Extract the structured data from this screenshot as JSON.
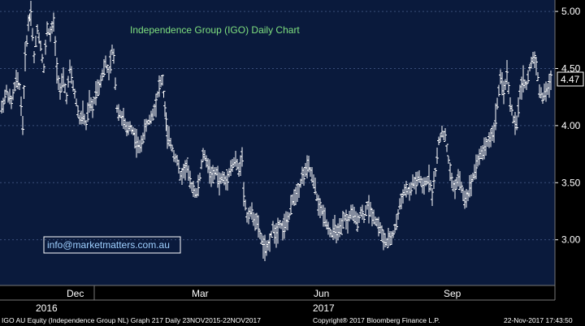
{
  "chart_data": {
    "type": "ohlc",
    "title": "Independence Group (IGO) Daily Chart",
    "email": "info@marketmatters.com.au",
    "last_price": "4.47",
    "y_ticks": [
      "5.00",
      "4.50",
      "4.00",
      "3.50",
      "3.00"
    ],
    "y_tick_values": [
      5.0,
      4.5,
      4.0,
      3.5,
      3.0
    ],
    "ylim": [
      2.6,
      5.1
    ],
    "month_labels": [
      "Dec",
      "Mar",
      "Jun",
      "Sep"
    ],
    "year_labels": [
      "2016",
      "2017"
    ],
    "grid": true,
    "footer_left": "IGO AU Equity (Independence Group NL) Graph 217  Daily 23NOV2015-22NOV2017",
    "footer_center": "Copyright® 2017 Bloomberg Finance L.P.",
    "footer_right": "22-Nov-2017 17:43:50",
    "path_points": [
      [
        0,
        4.15
      ],
      [
        6,
        4.3
      ],
      [
        12,
        4.2
      ],
      [
        18,
        4.4
      ],
      [
        22,
        4.35
      ],
      [
        26,
        4.0
      ],
      [
        29,
        4.6
      ],
      [
        33,
        4.9
      ],
      [
        36,
        5.0
      ],
      [
        40,
        4.6
      ],
      [
        44,
        4.85
      ],
      [
        48,
        4.7
      ],
      [
        52,
        4.5
      ],
      [
        56,
        4.85
      ],
      [
        60,
        4.8
      ],
      [
        64,
        4.9
      ],
      [
        68,
        4.5
      ],
      [
        72,
        4.3
      ],
      [
        76,
        4.4
      ],
      [
        80,
        4.25
      ],
      [
        84,
        4.5
      ],
      [
        88,
        4.35
      ],
      [
        92,
        4.2
      ],
      [
        96,
        4.05
      ],
      [
        100,
        4.1
      ],
      [
        104,
        4.0
      ],
      [
        108,
        4.2
      ],
      [
        112,
        4.15
      ],
      [
        116,
        4.3
      ],
      [
        120,
        4.35
      ],
      [
        124,
        4.45
      ],
      [
        128,
        4.55
      ],
      [
        132,
        4.45
      ],
      [
        136,
        4.65
      ],
      [
        138,
        4.6
      ],
      [
        142,
        4.15
      ],
      [
        146,
        4.1
      ],
      [
        150,
        4.05
      ],
      [
        154,
        3.95
      ],
      [
        158,
        4.0
      ],
      [
        162,
        3.95
      ],
      [
        166,
        3.85
      ],
      [
        170,
        3.8
      ],
      [
        174,
        3.9
      ],
      [
        178,
        4.0
      ],
      [
        182,
        4.05
      ],
      [
        186,
        4.1
      ],
      [
        190,
        4.2
      ],
      [
        194,
        4.35
      ],
      [
        198,
        4.4
      ],
      [
        201,
        4.15
      ],
      [
        204,
        3.9
      ],
      [
        208,
        3.85
      ],
      [
        212,
        3.75
      ],
      [
        216,
        3.7
      ],
      [
        220,
        3.55
      ],
      [
        224,
        3.6
      ],
      [
        228,
        3.65
      ],
      [
        232,
        3.5
      ],
      [
        236,
        3.45
      ],
      [
        240,
        3.4
      ],
      [
        244,
        3.55
      ],
      [
        248,
        3.75
      ],
      [
        252,
        3.7
      ],
      [
        256,
        3.6
      ],
      [
        260,
        3.55
      ],
      [
        264,
        3.6
      ],
      [
        268,
        3.5
      ],
      [
        272,
        3.55
      ],
      [
        276,
        3.5
      ],
      [
        280,
        3.6
      ],
      [
        284,
        3.65
      ],
      [
        288,
        3.7
      ],
      [
        292,
        3.6
      ],
      [
        296,
        3.75
      ],
      [
        298,
        3.4
      ],
      [
        302,
        3.2
      ],
      [
        306,
        3.25
      ],
      [
        310,
        3.2
      ],
      [
        314,
        3.15
      ],
      [
        318,
        3.05
      ],
      [
        322,
        2.95
      ],
      [
        326,
        2.9
      ],
      [
        330,
        3.0
      ],
      [
        334,
        3.1
      ],
      [
        338,
        3.05
      ],
      [
        342,
        3.15
      ],
      [
        346,
        3.1
      ],
      [
        350,
        3.15
      ],
      [
        354,
        3.2
      ],
      [
        358,
        3.35
      ],
      [
        362,
        3.4
      ],
      [
        366,
        3.45
      ],
      [
        370,
        3.55
      ],
      [
        374,
        3.6
      ],
      [
        378,
        3.65
      ],
      [
        382,
        3.55
      ],
      [
        386,
        3.45
      ],
      [
        390,
        3.3
      ],
      [
        394,
        3.25
      ],
      [
        398,
        3.2
      ],
      [
        402,
        3.1
      ],
      [
        406,
        3.05
      ],
      [
        410,
        3.1
      ],
      [
        414,
        3.05
      ],
      [
        418,
        3.1
      ],
      [
        422,
        3.2
      ],
      [
        426,
        3.15
      ],
      [
        430,
        3.25
      ],
      [
        434,
        3.2
      ],
      [
        438,
        3.15
      ],
      [
        442,
        3.25
      ],
      [
        446,
        3.2
      ],
      [
        450,
        3.3
      ],
      [
        454,
        3.25
      ],
      [
        458,
        3.2
      ],
      [
        462,
        3.15
      ],
      [
        466,
        3.1
      ],
      [
        470,
        3.0
      ],
      [
        474,
        2.98
      ],
      [
        478,
        3.0
      ],
      [
        482,
        3.05
      ],
      [
        486,
        3.15
      ],
      [
        490,
        3.3
      ],
      [
        494,
        3.4
      ],
      [
        498,
        3.45
      ],
      [
        502,
        3.4
      ],
      [
        506,
        3.5
      ],
      [
        510,
        3.5
      ],
      [
        514,
        3.55
      ],
      [
        518,
        3.45
      ],
      [
        522,
        3.5
      ],
      [
        526,
        3.55
      ],
      [
        530,
        3.4
      ],
      [
        534,
        3.6
      ],
      [
        538,
        3.85
      ],
      [
        542,
        3.95
      ],
      [
        546,
        3.9
      ],
      [
        550,
        3.7
      ],
      [
        554,
        3.5
      ],
      [
        558,
        3.45
      ],
      [
        562,
        3.55
      ],
      [
        566,
        3.45
      ],
      [
        570,
        3.35
      ],
      [
        574,
        3.4
      ],
      [
        578,
        3.5
      ],
      [
        582,
        3.6
      ],
      [
        586,
        3.7
      ],
      [
        590,
        3.75
      ],
      [
        594,
        3.8
      ],
      [
        598,
        3.85
      ],
      [
        602,
        3.9
      ],
      [
        606,
        3.95
      ],
      [
        610,
        4.2
      ],
      [
        614,
        4.4
      ],
      [
        618,
        4.3
      ],
      [
        622,
        4.45
      ],
      [
        626,
        4.2
      ],
      [
        630,
        4.05
      ],
      [
        634,
        4.0
      ],
      [
        638,
        4.3
      ],
      [
        642,
        4.4
      ],
      [
        646,
        4.35
      ],
      [
        650,
        4.5
      ],
      [
        654,
        4.6
      ],
      [
        658,
        4.55
      ],
      [
        662,
        4.3
      ],
      [
        666,
        4.25
      ],
      [
        670,
        4.3
      ],
      [
        674,
        4.35
      ],
      [
        678,
        4.47
      ]
    ]
  }
}
